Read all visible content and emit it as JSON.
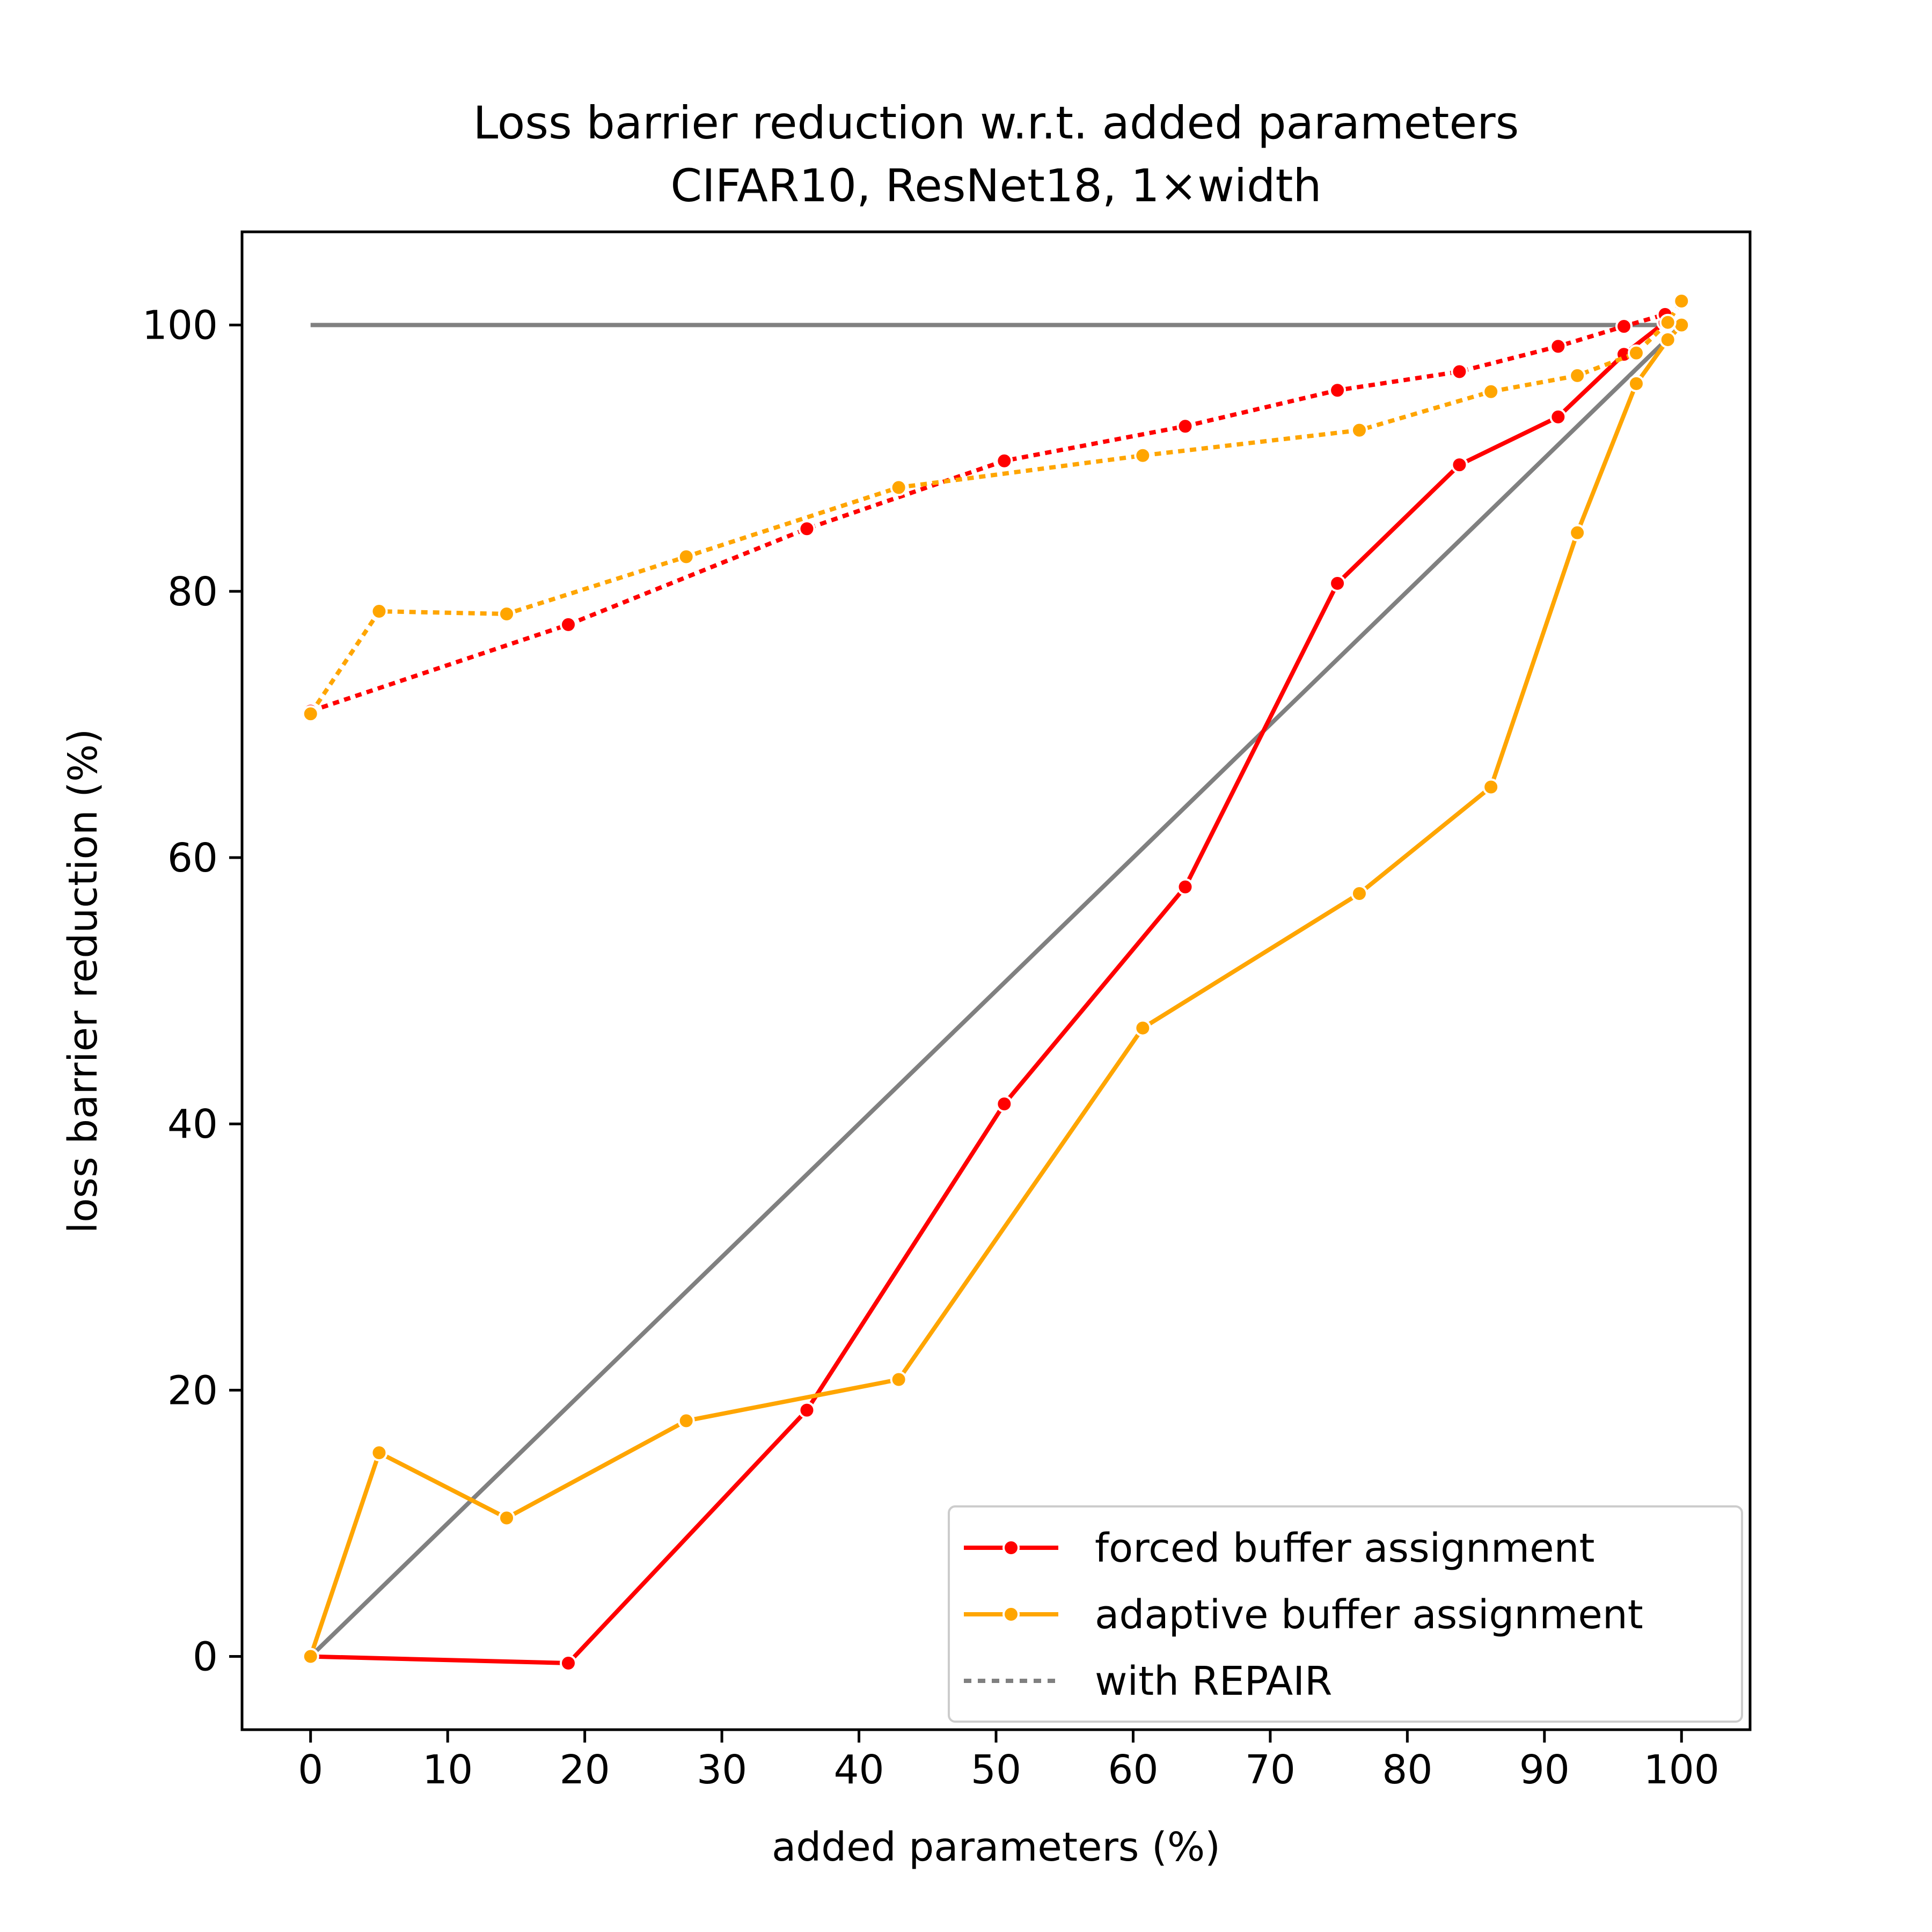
{
  "chart_data": {
    "type": "line",
    "title": "Loss barrier reduction w.r.t. added parameters",
    "subtitle": "CIFAR10, ResNet18, 1×width",
    "xlabel": "added parameters (%)",
    "ylabel": "loss barrier reduction (%)",
    "xlim": [
      -5,
      105
    ],
    "ylim": [
      -5.5,
      107
    ],
    "xticks": [
      0,
      10,
      20,
      30,
      40,
      50,
      60,
      70,
      80,
      90,
      100
    ],
    "yticks": [
      0,
      20,
      40,
      60,
      80,
      100
    ],
    "grid": false,
    "legend_position": "bottom-right",
    "legend": [
      "forced buffer assignment",
      "adaptive buffer assignment",
      "with REPAIR"
    ],
    "reference_lines": [
      {
        "x": [
          0,
          100
        ],
        "y": [
          100,
          100
        ],
        "color": "#808080"
      },
      {
        "x": [
          0,
          100
        ],
        "y": [
          0,
          100
        ],
        "color": "#808080"
      }
    ],
    "series": [
      {
        "name": "forced buffer assignment",
        "color": "#ff0000",
        "style": "solid",
        "x": [
          0,
          18.8,
          36.2,
          50.6,
          63.8,
          74.9,
          83.8,
          91.0,
          95.8,
          98.8
        ],
        "y": [
          0,
          -0.5,
          18.5,
          41.5,
          57.8,
          80.6,
          89.5,
          93.1,
          97.8,
          100.2
        ]
      },
      {
        "name": "adaptive buffer assignment",
        "color": "#ffa500",
        "style": "solid",
        "x": [
          0,
          5.0,
          14.3,
          27.4,
          42.9,
          60.7,
          76.5,
          86.1,
          92.4,
          96.7,
          99.0,
          100.0
        ],
        "y": [
          0,
          15.3,
          10.4,
          17.7,
          20.8,
          47.2,
          57.3,
          65.3,
          84.4,
          95.6,
          98.9,
          100.0
        ]
      },
      {
        "name": "forced buffer assignment with REPAIR",
        "color": "#ff0000",
        "style": "dotted",
        "x": [
          0,
          18.8,
          36.2,
          50.6,
          63.8,
          74.9,
          83.8,
          91.0,
          95.8,
          98.8
        ],
        "y": [
          71.0,
          77.5,
          84.7,
          89.8,
          92.4,
          95.1,
          96.5,
          98.4,
          99.9,
          100.8
        ]
      },
      {
        "name": "adaptive buffer assignment with REPAIR",
        "color": "#ffa500",
        "style": "dotted",
        "x": [
          0,
          5.0,
          14.3,
          27.4,
          42.9,
          60.7,
          76.5,
          86.1,
          92.4,
          96.7,
          99.0,
          100.0
        ],
        "y": [
          70.8,
          78.5,
          78.3,
          82.6,
          87.8,
          90.2,
          92.1,
          95.0,
          96.2,
          97.9,
          100.2,
          101.8
        ]
      }
    ]
  }
}
